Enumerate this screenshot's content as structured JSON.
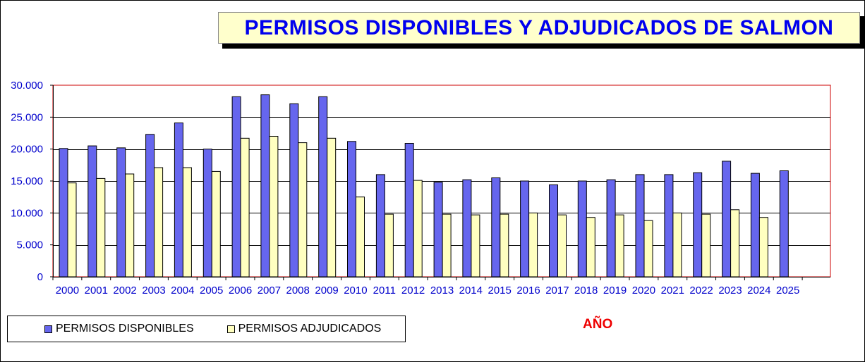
{
  "chart_data": {
    "type": "bar",
    "title": "PERMISOS DISPONIBLES Y ADJUDICADOS DE SALMON",
    "xlabel": "AÑO",
    "ylabel": "",
    "ylim": [
      0,
      30000
    ],
    "yticks": [
      0,
      5000,
      10000,
      15000,
      20000,
      25000,
      30000
    ],
    "ytick_labels": [
      "0",
      "5.000",
      "10.000",
      "15.000",
      "20.000",
      "25.000",
      "30.000"
    ],
    "grid": true,
    "legend_position": "bottom-left",
    "categories": [
      "2000",
      "2001",
      "2002",
      "2003",
      "2004",
      "2005",
      "2006",
      "2007",
      "2008",
      "2009",
      "2010",
      "2011",
      "2012",
      "2013",
      "2014",
      "2015",
      "2016",
      "2017",
      "2018",
      "2019",
      "2020",
      "2021",
      "2022",
      "2023",
      "2024",
      "2025"
    ],
    "series": [
      {
        "name": "PERMISOS DISPONIBLES",
        "color": "#6666ee",
        "values": [
          20100,
          20500,
          20200,
          22300,
          24100,
          20000,
          28200,
          28500,
          27100,
          28200,
          21200,
          16000,
          20900,
          14800,
          15200,
          15500,
          15000,
          14400,
          15000,
          15200,
          16000,
          16000,
          16300,
          18100,
          16200,
          16600
        ]
      },
      {
        "name": "PERMISOS ADJUDICADOS",
        "color": "#ffffc0",
        "values": [
          14700,
          15400,
          16100,
          17100,
          17100,
          16500,
          21700,
          22000,
          21000,
          21700,
          12500,
          9800,
          15100,
          9800,
          9700,
          9800,
          10000,
          9700,
          9300,
          9700,
          8800,
          10000,
          9800,
          10500,
          9300,
          null
        ]
      }
    ]
  }
}
